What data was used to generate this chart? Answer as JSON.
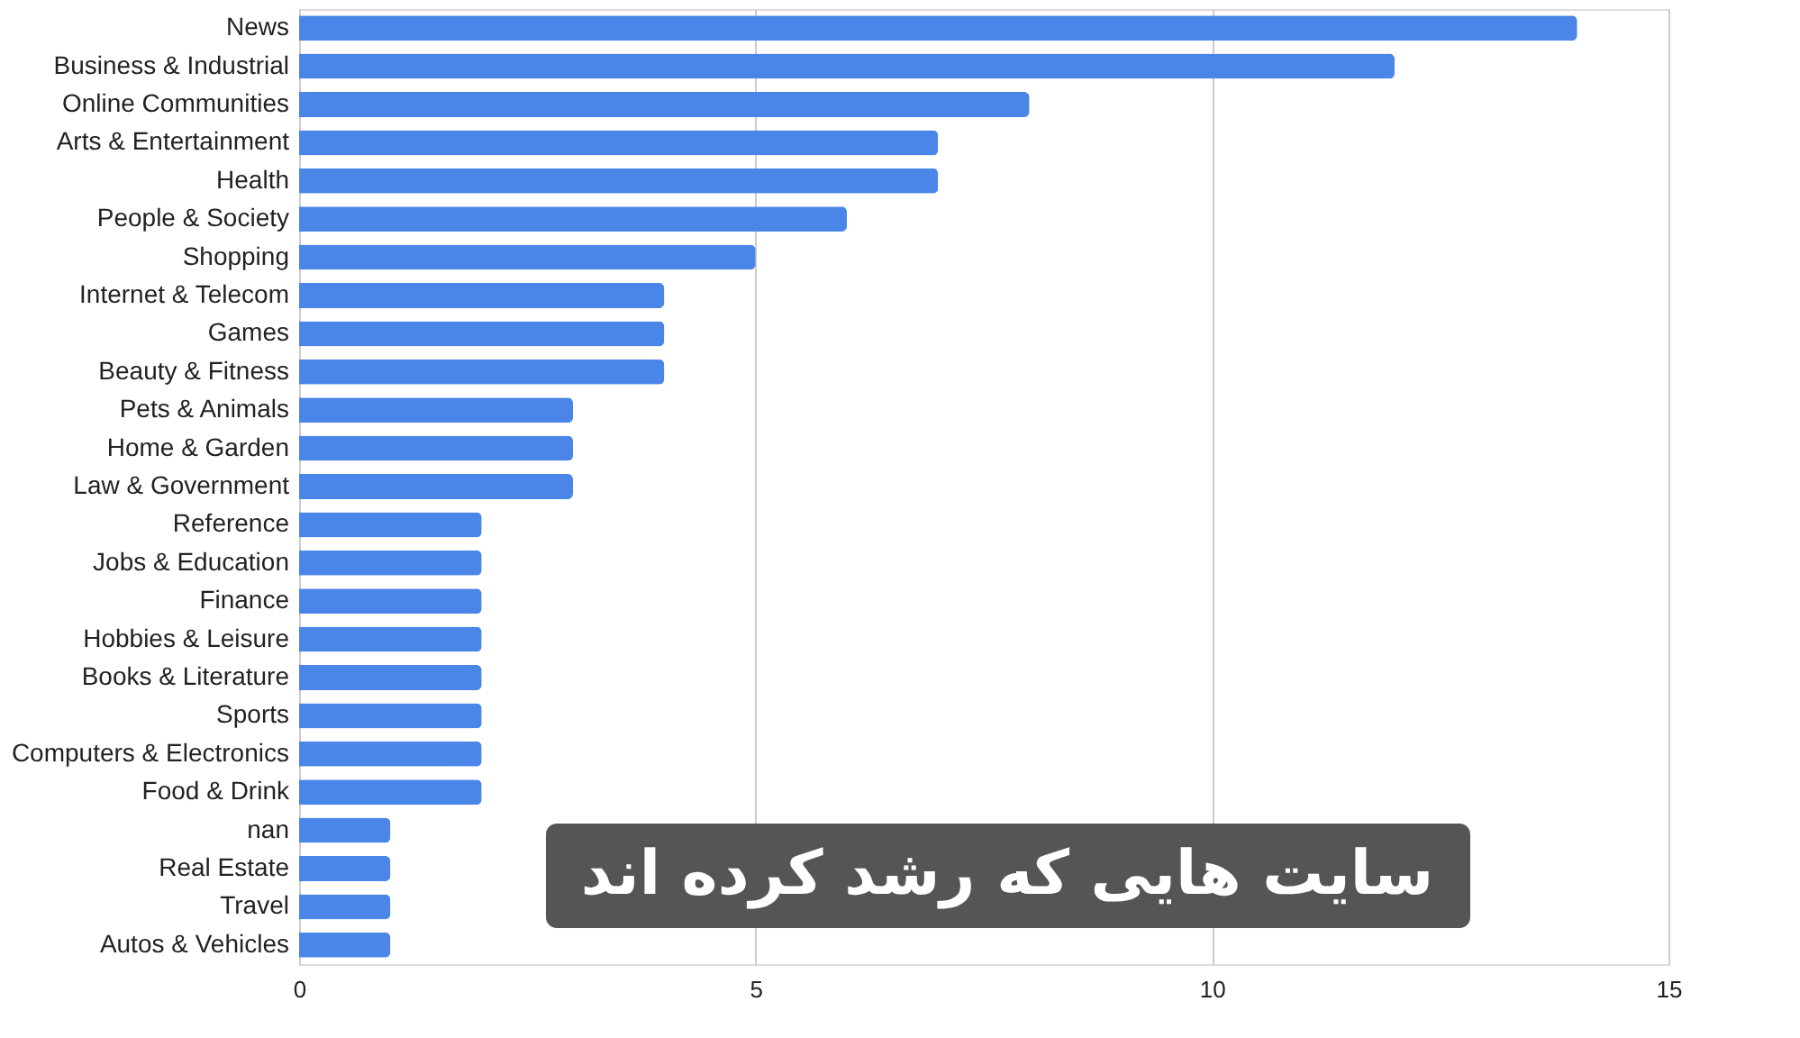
{
  "chart_data": {
    "type": "bar",
    "orientation": "horizontal",
    "categories": [
      "News",
      "Business & Industrial",
      "Online Communities",
      "Arts & Entertainment",
      "Health",
      "People & Society",
      "Shopping",
      "Internet & Telecom",
      "Games",
      "Beauty & Fitness",
      "Pets & Animals",
      "Home & Garden",
      "Law & Government",
      "Reference",
      "Jobs & Education",
      "Finance",
      "Hobbies & Leisure",
      "Books & Literature",
      "Sports",
      "Computers & Electronics",
      "Food & Drink",
      "nan",
      "Real Estate",
      "Travel",
      "Autos & Vehicles"
    ],
    "values": [
      14,
      12,
      8,
      7,
      7,
      6,
      5,
      4,
      4,
      4,
      3,
      3,
      3,
      2,
      2,
      2,
      2,
      2,
      2,
      2,
      2,
      1,
      1,
      1,
      1
    ],
    "color": "#4a86e8",
    "xlim": [
      0,
      15
    ],
    "xticks": [
      0,
      5,
      10,
      15
    ],
    "grid": "x",
    "annotations": [
      "سایت هایی که رشد کرده اند"
    ]
  }
}
